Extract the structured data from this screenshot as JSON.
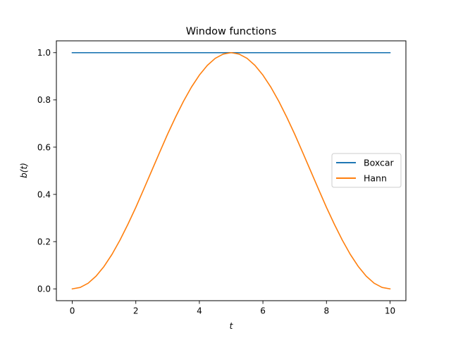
{
  "chart_data": {
    "type": "line",
    "title": "Window functions",
    "xlabel": "t",
    "ylabel": "b(t)",
    "xlim": [
      -0.5,
      10.5
    ],
    "ylim": [
      -0.05,
      1.05
    ],
    "x_ticks": [
      0,
      2,
      4,
      6,
      8,
      10
    ],
    "x_tick_labels": [
      "0",
      "2",
      "4",
      "6",
      "8",
      "10"
    ],
    "y_ticks": [
      0.0,
      0.2,
      0.4,
      0.6,
      0.8,
      1.0
    ],
    "y_tick_labels": [
      "0.0",
      "0.2",
      "0.4",
      "0.6",
      "0.8",
      "1.0"
    ],
    "grid": false,
    "legend_position": "center-right",
    "x": [
      0,
      0.25,
      0.5,
      0.75,
      1,
      1.25,
      1.5,
      1.75,
      2,
      2.25,
      2.5,
      2.75,
      3,
      3.25,
      3.5,
      3.75,
      4,
      4.25,
      4.5,
      4.75,
      5,
      5.25,
      5.5,
      5.75,
      6,
      6.25,
      6.5,
      6.75,
      7,
      7.25,
      7.5,
      7.75,
      8,
      8.25,
      8.5,
      8.75,
      9,
      9.25,
      9.5,
      9.75,
      10
    ],
    "series": [
      {
        "name": "Boxcar",
        "color": "#1f77b4",
        "values": [
          1,
          1,
          1,
          1,
          1,
          1,
          1,
          1,
          1,
          1,
          1,
          1,
          1,
          1,
          1,
          1,
          1,
          1,
          1,
          1,
          1,
          1,
          1,
          1,
          1,
          1,
          1,
          1,
          1,
          1,
          1,
          1,
          1,
          1,
          1,
          1,
          1,
          1,
          1,
          1,
          1
        ]
      },
      {
        "name": "Hann",
        "color": "#ff7f0e",
        "values": [
          0.0,
          0.006,
          0.024,
          0.054,
          0.095,
          0.146,
          0.206,
          0.273,
          0.345,
          0.422,
          0.5,
          0.578,
          0.655,
          0.727,
          0.794,
          0.854,
          0.905,
          0.946,
          0.976,
          0.994,
          1.0,
          0.994,
          0.976,
          0.946,
          0.905,
          0.854,
          0.794,
          0.727,
          0.655,
          0.578,
          0.5,
          0.422,
          0.345,
          0.273,
          0.206,
          0.146,
          0.095,
          0.054,
          0.024,
          0.006,
          0.0
        ]
      }
    ]
  }
}
